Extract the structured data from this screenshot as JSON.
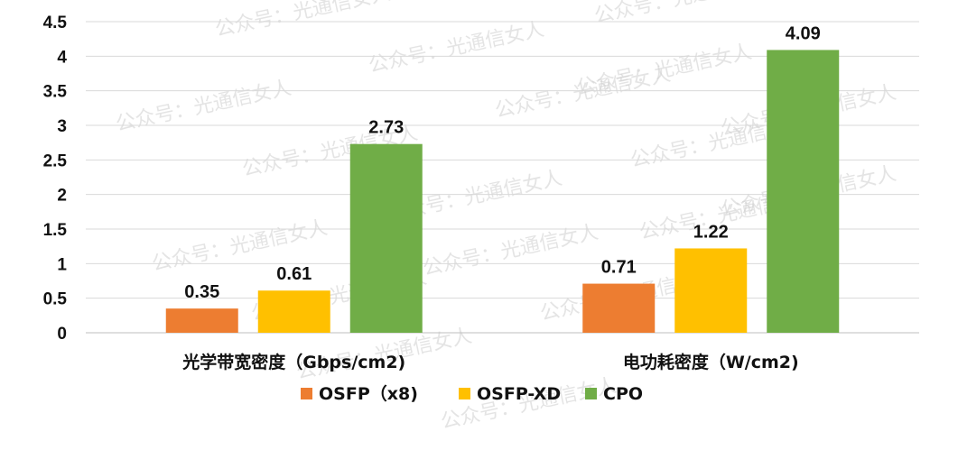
{
  "watermark_text": "公众号：光通信女人",
  "chart_data": {
    "type": "bar",
    "categories": [
      "光学带宽密度（Gbps/cm2)",
      "电功耗密度（W/cm2)"
    ],
    "series": [
      {
        "name": "OSFP（x8)",
        "values": [
          0.35,
          0.71
        ],
        "color": "#ED7D31"
      },
      {
        "name": "OSFP-XD",
        "values": [
          0.61,
          1.22
        ],
        "color": "#FFC000"
      },
      {
        "name": "CPO",
        "values": [
          2.73,
          4.09
        ],
        "color": "#70AD47"
      }
    ],
    "ylim": [
      0,
      4.5
    ],
    "yticks": [
      "0",
      "0.5",
      "1",
      "1.5",
      "2",
      "2.5",
      "3",
      "3.5",
      "4",
      "4.5"
    ],
    "grid": true,
    "legend": "bottom"
  }
}
